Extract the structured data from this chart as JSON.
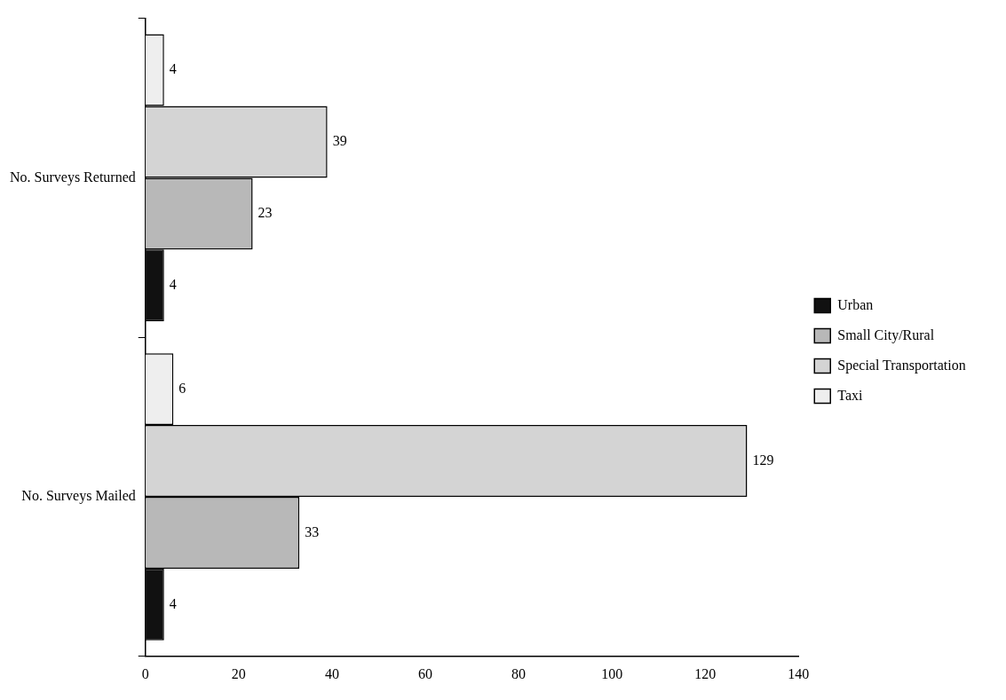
{
  "chart_data": {
    "type": "bar",
    "orientation": "horizontal",
    "categories": [
      "No. Surveys Returned",
      "No. Surveys Mailed"
    ],
    "series": [
      {
        "name": "Urban",
        "color": "#111111",
        "values": [
          4,
          4
        ]
      },
      {
        "name": "Small City/Rural",
        "color": "#b8b8b8",
        "values": [
          23,
          33
        ]
      },
      {
        "name": "Special Transportation",
        "color": "#d4d4d4",
        "values": [
          39,
          129
        ]
      },
      {
        "name": "Taxi",
        "color": "#eeeeee",
        "values": [
          4,
          6
        ]
      }
    ],
    "xlim": [
      0,
      140
    ],
    "xticks": [
      0,
      20,
      40,
      60,
      80,
      100,
      120,
      140
    ],
    "grid": false,
    "legend": "right",
    "data_labels": true
  }
}
